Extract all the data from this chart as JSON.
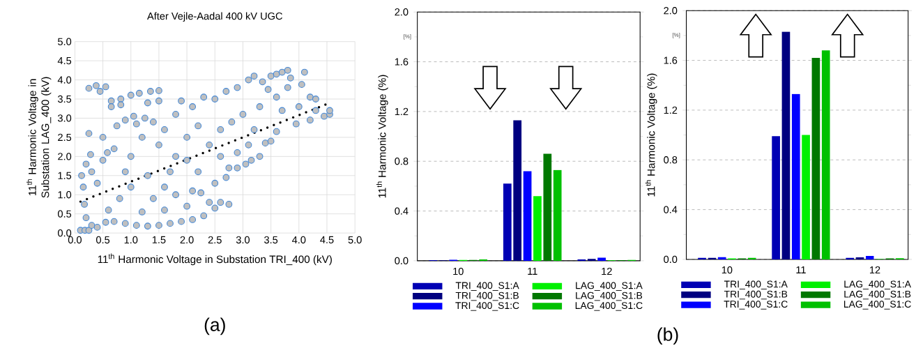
{
  "chart_data": [
    {
      "type": "scatter",
      "title": "After Vejle-Aadal 400 kV UGC",
      "xlabel": "11$^{th}$ Harmonic Voltage in Substation TRI_400 (kV)",
      "ylabel": "11$^{th}$ Harmonic Voltage in Substation LAG_400 (kV)",
      "xlim": [
        0,
        5
      ],
      "ylim": [
        0,
        5
      ],
      "xticks": [
        {
          "value": 0,
          "label": "0.0"
        },
        {
          "value": 0.5,
          "label": "0.5"
        },
        {
          "value": 1,
          "label": "1.0"
        },
        {
          "value": 1.5,
          "label": "1.5"
        },
        {
          "value": 2,
          "label": "2.0"
        },
        {
          "value": 2.5,
          "label": "2.5"
        },
        {
          "value": 3,
          "label": "3.0"
        },
        {
          "value": 3.5,
          "label": "3.5"
        },
        {
          "value": 4,
          "label": "4.0"
        },
        {
          "value": 4.5,
          "label": "4.5"
        },
        {
          "value": 5,
          "label": "5.0"
        }
      ],
      "yticks": [
        {
          "value": 0,
          "label": "0.0"
        },
        {
          "value": 0.5,
          "label": "0.5"
        },
        {
          "value": 1,
          "label": "1.0"
        },
        {
          "value": 1.5,
          "label": "1.5"
        },
        {
          "value": 2,
          "label": "2.0"
        },
        {
          "value": 2.5,
          "label": "2.5"
        },
        {
          "value": 3,
          "label": "3.0"
        },
        {
          "value": 3.5,
          "label": "3.5"
        },
        {
          "value": 4,
          "label": "4.0"
        },
        {
          "value": 4.5,
          "label": "4.5"
        },
        {
          "value": 5,
          "label": "5.0"
        }
      ],
      "grid": true,
      "marker": "circle",
      "annotations": [
        "(a)"
      ],
      "series": [
        {
          "color": "#bfbfbf",
          "x": [
            0.1,
            0.18,
            0.25,
            0.12,
            0.15,
            0.2,
            0.25,
            0.28,
            0.25,
            0.38,
            0.45,
            0.55,
            0.5,
            0.58,
            0.65,
            0.65,
            0.82,
            0.82,
            1.0,
            1.15,
            1.35,
            1.5,
            1.5,
            1.3,
            0.17,
            0.2,
            0.3,
            0.4,
            0.55,
            0.7,
            0.9,
            1.1,
            1.3,
            1.5,
            1.7,
            1.9,
            2.1,
            2.3,
            2.5,
            2.6,
            2.75,
            2.4,
            2.0,
            1.6,
            1.2,
            0.8,
            0.4,
            0.3,
            0.5,
            0.7,
            0.75,
            0.9,
            1.05,
            1.1,
            1.25,
            1.4,
            1.2,
            1.0,
            1.3,
            1.6,
            1.8,
            2.1,
            2.25,
            2.5,
            2.7,
            2.75,
            2.9,
            3.05,
            3.15,
            3.3,
            2.2,
            1.8,
            1.5,
            1.6,
            1.8,
            1.9,
            2.3,
            2.1,
            2.5,
            2.7,
            2.9,
            3.1,
            3.2,
            3.35,
            3.45,
            3.5,
            3.6,
            3.7,
            3.8,
            3.85,
            3.8,
            3.6,
            4.1,
            4.05,
            4.2,
            4.0,
            4.3,
            4.3,
            4.45,
            4.55,
            4.55,
            4.2,
            3.95,
            3.6,
            3.4,
            3.5,
            3.1,
            2.9,
            2.6,
            2.4,
            2.0,
            2.2,
            2.6,
            2.8,
            3.0,
            3.3,
            3.7,
            3.2,
            1.0,
            1.4,
            0.6,
            0.9,
            1.7,
            2.0
          ],
          "values": [
            0.07,
            0.07,
            0.07,
            1.5,
            1.2,
            1.8,
            2.6,
            2.05,
            3.78,
            3.85,
            3.7,
            3.82,
            2.5,
            2.1,
            3.45,
            3.3,
            3.5,
            3.35,
            3.6,
            3.65,
            3.7,
            3.72,
            3.45,
            3.4,
            0.75,
            0.4,
            0.2,
            0.15,
            0.28,
            0.3,
            0.25,
            0.2,
            0.18,
            0.2,
            0.25,
            0.3,
            0.35,
            0.45,
            0.65,
            0.8,
            0.75,
            0.8,
            0.7,
            0.6,
            0.55,
            0.9,
            1.3,
            1.6,
            1.9,
            2.2,
            2.8,
            2.95,
            3.05,
            2.85,
            3.0,
            2.9,
            2.5,
            2.0,
            1.5,
            1.2,
            1.0,
            1.1,
            1.05,
            1.3,
            1.45,
            1.7,
            1.7,
            1.8,
            1.9,
            2.0,
            1.6,
            2.0,
            2.3,
            2.7,
            3.1,
            3.45,
            3.55,
            3.3,
            3.5,
            3.7,
            3.8,
            4.0,
            4.1,
            3.95,
            3.75,
            4.1,
            4.15,
            4.2,
            4.25,
            4.05,
            3.8,
            3.55,
            4.2,
            3.88,
            3.55,
            3.3,
            3.5,
            3.2,
            3.05,
            3.1,
            3.2,
            2.95,
            2.85,
            2.65,
            2.35,
            2.4,
            2.3,
            2.1,
            2.0,
            2.3,
            2.5,
            2.8,
            2.7,
            2.9,
            3.1,
            3.3,
            3.2,
            2.7,
            1.2,
            0.9,
            0.6,
            1.6,
            1.6,
            1.9
          ]
        },
        {
          "type": "line",
          "color": "#000000",
          "line_style": "dotted",
          "marker": "none",
          "x": [
            0.1,
            4.52
          ],
          "values": [
            0.82,
            3.38
          ]
        }
      ]
    },
    {
      "type": "bar",
      "ylabel": "11$^{th}$ Harmonic Voltage (%)",
      "categories": [
        "10",
        "11",
        "12"
      ],
      "ylim": [
        0,
        2
      ],
      "yticks": [
        {
          "value": 0,
          "label": "0.0"
        },
        {
          "value": 0.2,
          "label": null
        },
        {
          "value": 0.4,
          "label": "0.4"
        },
        {
          "value": 0.6,
          "label": null
        },
        {
          "value": 0.8,
          "label": "0.8"
        },
        {
          "value": 1.0,
          "label": null
        },
        {
          "value": 1.2,
          "label": "1.2"
        },
        {
          "value": 1.4,
          "label": null
        },
        {
          "value": 1.6,
          "label": "1.6"
        },
        {
          "value": 1.8,
          "label": null
        },
        {
          "value": 2.0,
          "label": "2.0"
        }
      ],
      "grid": "y",
      "legend": "bottom",
      "annotations": [
        "[%]"
      ],
      "series": [
        {
          "name": "TRI_400_S1:A",
          "color": "#0000b4",
          "values": [
            0.005,
            0.62,
            0.01
          ]
        },
        {
          "name": "TRI_400_S1:B",
          "color": "#000080",
          "values": [
            0.003,
            1.13,
            0.015
          ]
        },
        {
          "name": "TRI_400_S1:C",
          "color": "#0000ff",
          "values": [
            0.008,
            0.72,
            0.025
          ]
        },
        {
          "name": "LAG_400_S1:A",
          "color": "#00f000",
          "values": [
            0.007,
            0.52,
            0.003
          ]
        },
        {
          "name": "LAG_400_S1:B",
          "color": "#007800",
          "values": [
            0.006,
            0.86,
            0.005
          ]
        },
        {
          "name": "LAG_400_S1:C",
          "color": "#00c000",
          "values": [
            0.01,
            0.73,
            0.007
          ]
        }
      ]
    },
    {
      "type": "bar",
      "ylabel": "11$^{th}$ Harmonic Voltage (%)",
      "categories": [
        "10",
        "11",
        "12"
      ],
      "ylim": [
        0,
        2
      ],
      "yticks": [
        {
          "value": 0,
          "label": "0.0"
        },
        {
          "value": 0.2,
          "label": null
        },
        {
          "value": 0.4,
          "label": "0.4"
        },
        {
          "value": 0.6,
          "label": null
        },
        {
          "value": 0.8,
          "label": "0.8"
        },
        {
          "value": 1.0,
          "label": null
        },
        {
          "value": 1.2,
          "label": "1.2"
        },
        {
          "value": 1.4,
          "label": null
        },
        {
          "value": 1.6,
          "label": "1.6"
        },
        {
          "value": 1.8,
          "label": null
        },
        {
          "value": 2.0,
          "label": "2.0"
        }
      ],
      "grid": "y",
      "legend": "bottom",
      "annotations": [
        "[%]",
        "(b)"
      ],
      "series": [
        {
          "name": "TRI_400_S1:A",
          "color": "#0000b4",
          "values": [
            0.012,
            0.99,
            0.012
          ]
        },
        {
          "name": "TRI_400_S1:B",
          "color": "#000080",
          "values": [
            0.012,
            1.83,
            0.016
          ]
        },
        {
          "name": "TRI_400_S1:C",
          "color": "#0000ff",
          "values": [
            0.018,
            1.33,
            0.028
          ]
        },
        {
          "name": "LAG_400_S1:A",
          "color": "#00f000",
          "values": [
            0.008,
            1.0,
            0.003
          ]
        },
        {
          "name": "LAG_400_S1:B",
          "color": "#007800",
          "values": [
            0.008,
            1.62,
            0.008
          ]
        },
        {
          "name": "LAG_400_S1:C",
          "color": "#00c000",
          "values": [
            0.012,
            1.68,
            0.01
          ]
        }
      ]
    }
  ]
}
